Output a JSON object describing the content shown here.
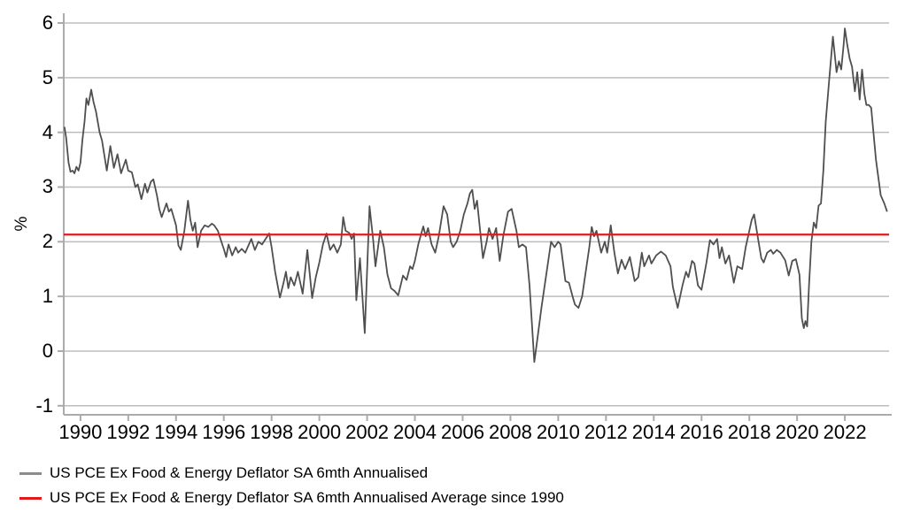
{
  "chart_data": {
    "type": "line",
    "title": "",
    "xlabel": "",
    "ylabel": "%",
    "grid": true,
    "legend_position": "bottom-left",
    "background": "#ffffff",
    "grid_color": "#bdbdbd",
    "axis_color": "#ababab",
    "x_axis": {
      "lim": [
        1989.3,
        2023.85
      ],
      "ticks": [
        1990,
        1992,
        1994,
        1996,
        1998,
        2000,
        2002,
        2004,
        2006,
        2008,
        2010,
        2012,
        2014,
        2016,
        2018,
        2020,
        2022
      ]
    },
    "y_axis": {
      "lim": [
        -1,
        6
      ],
      "ticks": [
        -1,
        0,
        1,
        2,
        3,
        4,
        5,
        6
      ],
      "label": "%"
    },
    "series": [
      {
        "name": "US PCE Ex Food & Energy Deflator SA 6mth Annualised",
        "type": "line",
        "color": "#4f4f4f",
        "legend_swatch_color": "#8c8c8c",
        "stroke_width": 1.8,
        "points": [
          [
            1989.33,
            4.1
          ],
          [
            1989.4,
            3.9
          ],
          [
            1989.5,
            3.45
          ],
          [
            1989.58,
            3.28
          ],
          [
            1989.67,
            3.3
          ],
          [
            1989.75,
            3.25
          ],
          [
            1989.83,
            3.37
          ],
          [
            1989.92,
            3.3
          ],
          [
            1990.0,
            3.45
          ],
          [
            1990.08,
            3.85
          ],
          [
            1990.17,
            4.2
          ],
          [
            1990.25,
            4.62
          ],
          [
            1990.33,
            4.5
          ],
          [
            1990.45,
            4.78
          ],
          [
            1990.55,
            4.55
          ],
          [
            1990.65,
            4.38
          ],
          [
            1990.7,
            4.25
          ],
          [
            1990.8,
            4.0
          ],
          [
            1990.9,
            3.85
          ],
          [
            1991.1,
            3.3
          ],
          [
            1991.25,
            3.75
          ],
          [
            1991.4,
            3.35
          ],
          [
            1991.55,
            3.6
          ],
          [
            1991.7,
            3.25
          ],
          [
            1991.9,
            3.5
          ],
          [
            1992.0,
            3.3
          ],
          [
            1992.15,
            3.27
          ],
          [
            1992.3,
            3.0
          ],
          [
            1992.4,
            3.05
          ],
          [
            1992.55,
            2.78
          ],
          [
            1992.7,
            3.06
          ],
          [
            1992.8,
            2.9
          ],
          [
            1992.95,
            3.1
          ],
          [
            1993.05,
            3.14
          ],
          [
            1993.2,
            2.85
          ],
          [
            1993.3,
            2.6
          ],
          [
            1993.4,
            2.45
          ],
          [
            1993.6,
            2.7
          ],
          [
            1993.7,
            2.55
          ],
          [
            1993.8,
            2.6
          ],
          [
            1994.0,
            2.3
          ],
          [
            1994.1,
            1.93
          ],
          [
            1994.2,
            1.85
          ],
          [
            1994.35,
            2.2
          ],
          [
            1994.5,
            2.75
          ],
          [
            1994.6,
            2.4
          ],
          [
            1994.7,
            2.2
          ],
          [
            1994.8,
            2.35
          ],
          [
            1994.9,
            1.9
          ],
          [
            1995.05,
            2.2
          ],
          [
            1995.2,
            2.3
          ],
          [
            1995.35,
            2.27
          ],
          [
            1995.5,
            2.33
          ],
          [
            1995.6,
            2.3
          ],
          [
            1995.75,
            2.2
          ],
          [
            1995.9,
            2.0
          ],
          [
            1996.0,
            1.87
          ],
          [
            1996.1,
            1.72
          ],
          [
            1996.2,
            1.95
          ],
          [
            1996.35,
            1.75
          ],
          [
            1996.5,
            1.9
          ],
          [
            1996.6,
            1.8
          ],
          [
            1996.75,
            1.87
          ],
          [
            1996.9,
            1.8
          ],
          [
            1997.0,
            1.9
          ],
          [
            1997.15,
            2.05
          ],
          [
            1997.3,
            1.85
          ],
          [
            1997.45,
            2.0
          ],
          [
            1997.6,
            1.95
          ],
          [
            1997.75,
            2.05
          ],
          [
            1997.9,
            2.15
          ],
          [
            1998.0,
            1.9
          ],
          [
            1998.15,
            1.45
          ],
          [
            1998.35,
            0.98
          ],
          [
            1998.5,
            1.25
          ],
          [
            1998.6,
            1.45
          ],
          [
            1998.7,
            1.15
          ],
          [
            1998.8,
            1.35
          ],
          [
            1998.95,
            1.2
          ],
          [
            1999.1,
            1.45
          ],
          [
            1999.3,
            1.05
          ],
          [
            1999.5,
            1.85
          ],
          [
            1999.7,
            0.97
          ],
          [
            1999.85,
            1.35
          ],
          [
            2000.0,
            1.62
          ],
          [
            2000.15,
            1.95
          ],
          [
            2000.3,
            2.15
          ],
          [
            2000.45,
            1.85
          ],
          [
            2000.6,
            1.95
          ],
          [
            2000.75,
            1.8
          ],
          [
            2000.9,
            1.95
          ],
          [
            2001.0,
            2.45
          ],
          [
            2001.1,
            2.2
          ],
          [
            2001.25,
            2.16
          ],
          [
            2001.35,
            2.05
          ],
          [
            2001.45,
            2.15
          ],
          [
            2001.55,
            0.93
          ],
          [
            2001.7,
            1.7
          ],
          [
            2001.9,
            0.33
          ],
          [
            2002.1,
            2.65
          ],
          [
            2002.25,
            2.05
          ],
          [
            2002.35,
            1.55
          ],
          [
            2002.55,
            2.2
          ],
          [
            2002.7,
            1.9
          ],
          [
            2002.85,
            1.4
          ],
          [
            2003.0,
            1.15
          ],
          [
            2003.15,
            1.1
          ],
          [
            2003.3,
            1.02
          ],
          [
            2003.5,
            1.38
          ],
          [
            2003.65,
            1.3
          ],
          [
            2003.8,
            1.55
          ],
          [
            2003.9,
            1.5
          ],
          [
            2004.0,
            1.65
          ],
          [
            2004.15,
            1.97
          ],
          [
            2004.35,
            2.28
          ],
          [
            2004.45,
            2.1
          ],
          [
            2004.55,
            2.25
          ],
          [
            2004.7,
            1.95
          ],
          [
            2004.85,
            1.8
          ],
          [
            2005.0,
            2.1
          ],
          [
            2005.2,
            2.65
          ],
          [
            2005.35,
            2.5
          ],
          [
            2005.5,
            2.0
          ],
          [
            2005.6,
            1.9
          ],
          [
            2005.75,
            2.0
          ],
          [
            2005.9,
            2.2
          ],
          [
            2006.05,
            2.5
          ],
          [
            2006.2,
            2.7
          ],
          [
            2006.3,
            2.88
          ],
          [
            2006.4,
            2.95
          ],
          [
            2006.5,
            2.6
          ],
          [
            2006.6,
            2.75
          ],
          [
            2006.85,
            1.7
          ],
          [
            2007.0,
            2.0
          ],
          [
            2007.1,
            2.25
          ],
          [
            2007.25,
            2.05
          ],
          [
            2007.4,
            2.25
          ],
          [
            2007.55,
            1.65
          ],
          [
            2007.7,
            2.1
          ],
          [
            2007.9,
            2.55
          ],
          [
            2008.05,
            2.6
          ],
          [
            2008.25,
            2.2
          ],
          [
            2008.35,
            1.9
          ],
          [
            2008.5,
            1.95
          ],
          [
            2008.65,
            1.9
          ],
          [
            2008.8,
            1.2
          ],
          [
            2008.9,
            0.5
          ],
          [
            2009.0,
            -0.2
          ],
          [
            2009.15,
            0.3
          ],
          [
            2009.3,
            0.8
          ],
          [
            2009.5,
            1.4
          ],
          [
            2009.7,
            2.0
          ],
          [
            2009.85,
            1.9
          ],
          [
            2010.0,
            2.0
          ],
          [
            2010.1,
            1.95
          ],
          [
            2010.3,
            1.28
          ],
          [
            2010.45,
            1.25
          ],
          [
            2010.6,
            1.0
          ],
          [
            2010.7,
            0.85
          ],
          [
            2010.85,
            0.79
          ],
          [
            2011.0,
            1.0
          ],
          [
            2011.1,
            1.3
          ],
          [
            2011.3,
            1.9
          ],
          [
            2011.4,
            2.27
          ],
          [
            2011.5,
            2.1
          ],
          [
            2011.6,
            2.2
          ],
          [
            2011.8,
            1.8
          ],
          [
            2011.95,
            2.0
          ],
          [
            2012.05,
            1.8
          ],
          [
            2012.2,
            2.3
          ],
          [
            2012.35,
            1.8
          ],
          [
            2012.5,
            1.42
          ],
          [
            2012.65,
            1.67
          ],
          [
            2012.8,
            1.5
          ],
          [
            2013.0,
            1.72
          ],
          [
            2013.2,
            1.28
          ],
          [
            2013.35,
            1.35
          ],
          [
            2013.5,
            1.8
          ],
          [
            2013.6,
            1.55
          ],
          [
            2013.8,
            1.75
          ],
          [
            2013.9,
            1.6
          ],
          [
            2014.1,
            1.75
          ],
          [
            2014.3,
            1.82
          ],
          [
            2014.5,
            1.75
          ],
          [
            2014.7,
            1.55
          ],
          [
            2014.8,
            1.17
          ],
          [
            2015.0,
            0.79
          ],
          [
            2015.2,
            1.2
          ],
          [
            2015.35,
            1.45
          ],
          [
            2015.45,
            1.35
          ],
          [
            2015.6,
            1.65
          ],
          [
            2015.7,
            1.6
          ],
          [
            2015.85,
            1.2
          ],
          [
            2016.0,
            1.12
          ],
          [
            2016.2,
            1.6
          ],
          [
            2016.35,
            2.03
          ],
          [
            2016.5,
            1.95
          ],
          [
            2016.65,
            2.05
          ],
          [
            2016.75,
            1.7
          ],
          [
            2016.85,
            1.9
          ],
          [
            2017.0,
            1.6
          ],
          [
            2017.15,
            1.75
          ],
          [
            2017.35,
            1.25
          ],
          [
            2017.5,
            1.55
          ],
          [
            2017.7,
            1.5
          ],
          [
            2017.85,
            1.9
          ],
          [
            2018.0,
            2.2
          ],
          [
            2018.1,
            2.4
          ],
          [
            2018.2,
            2.5
          ],
          [
            2018.35,
            2.1
          ],
          [
            2018.5,
            1.7
          ],
          [
            2018.6,
            1.62
          ],
          [
            2018.75,
            1.8
          ],
          [
            2018.9,
            1.85
          ],
          [
            2019.0,
            1.78
          ],
          [
            2019.15,
            1.85
          ],
          [
            2019.3,
            1.8
          ],
          [
            2019.5,
            1.66
          ],
          [
            2019.65,
            1.38
          ],
          [
            2019.8,
            1.65
          ],
          [
            2019.95,
            1.68
          ],
          [
            2020.1,
            1.4
          ],
          [
            2020.2,
            0.6
          ],
          [
            2020.28,
            0.42
          ],
          [
            2020.35,
            0.55
          ],
          [
            2020.42,
            0.45
          ],
          [
            2020.5,
            1.2
          ],
          [
            2020.6,
            2.0
          ],
          [
            2020.7,
            2.35
          ],
          [
            2020.8,
            2.25
          ],
          [
            2020.9,
            2.66
          ],
          [
            2021.0,
            2.7
          ],
          [
            2021.1,
            3.3
          ],
          [
            2021.2,
            4.2
          ],
          [
            2021.35,
            5.0
          ],
          [
            2021.5,
            5.75
          ],
          [
            2021.65,
            5.1
          ],
          [
            2021.75,
            5.3
          ],
          [
            2021.85,
            5.15
          ],
          [
            2021.95,
            5.6
          ],
          [
            2022.0,
            5.9
          ],
          [
            2022.1,
            5.6
          ],
          [
            2022.2,
            5.35
          ],
          [
            2022.3,
            5.2
          ],
          [
            2022.42,
            4.75
          ],
          [
            2022.52,
            5.1
          ],
          [
            2022.62,
            4.6
          ],
          [
            2022.72,
            5.15
          ],
          [
            2022.82,
            4.7
          ],
          [
            2022.9,
            4.5
          ],
          [
            2023.0,
            4.5
          ],
          [
            2023.1,
            4.45
          ],
          [
            2023.3,
            3.5
          ],
          [
            2023.5,
            2.85
          ],
          [
            2023.65,
            2.7
          ],
          [
            2023.77,
            2.55
          ]
        ]
      },
      {
        "name": "US PCE Ex Food & Energy Deflator SA 6mth Annualised Average since 1990",
        "type": "hline",
        "color": "#e31a1c",
        "legend_swatch_color": "#e31a1c",
        "stroke_width": 2.2,
        "value": 2.13
      }
    ]
  }
}
